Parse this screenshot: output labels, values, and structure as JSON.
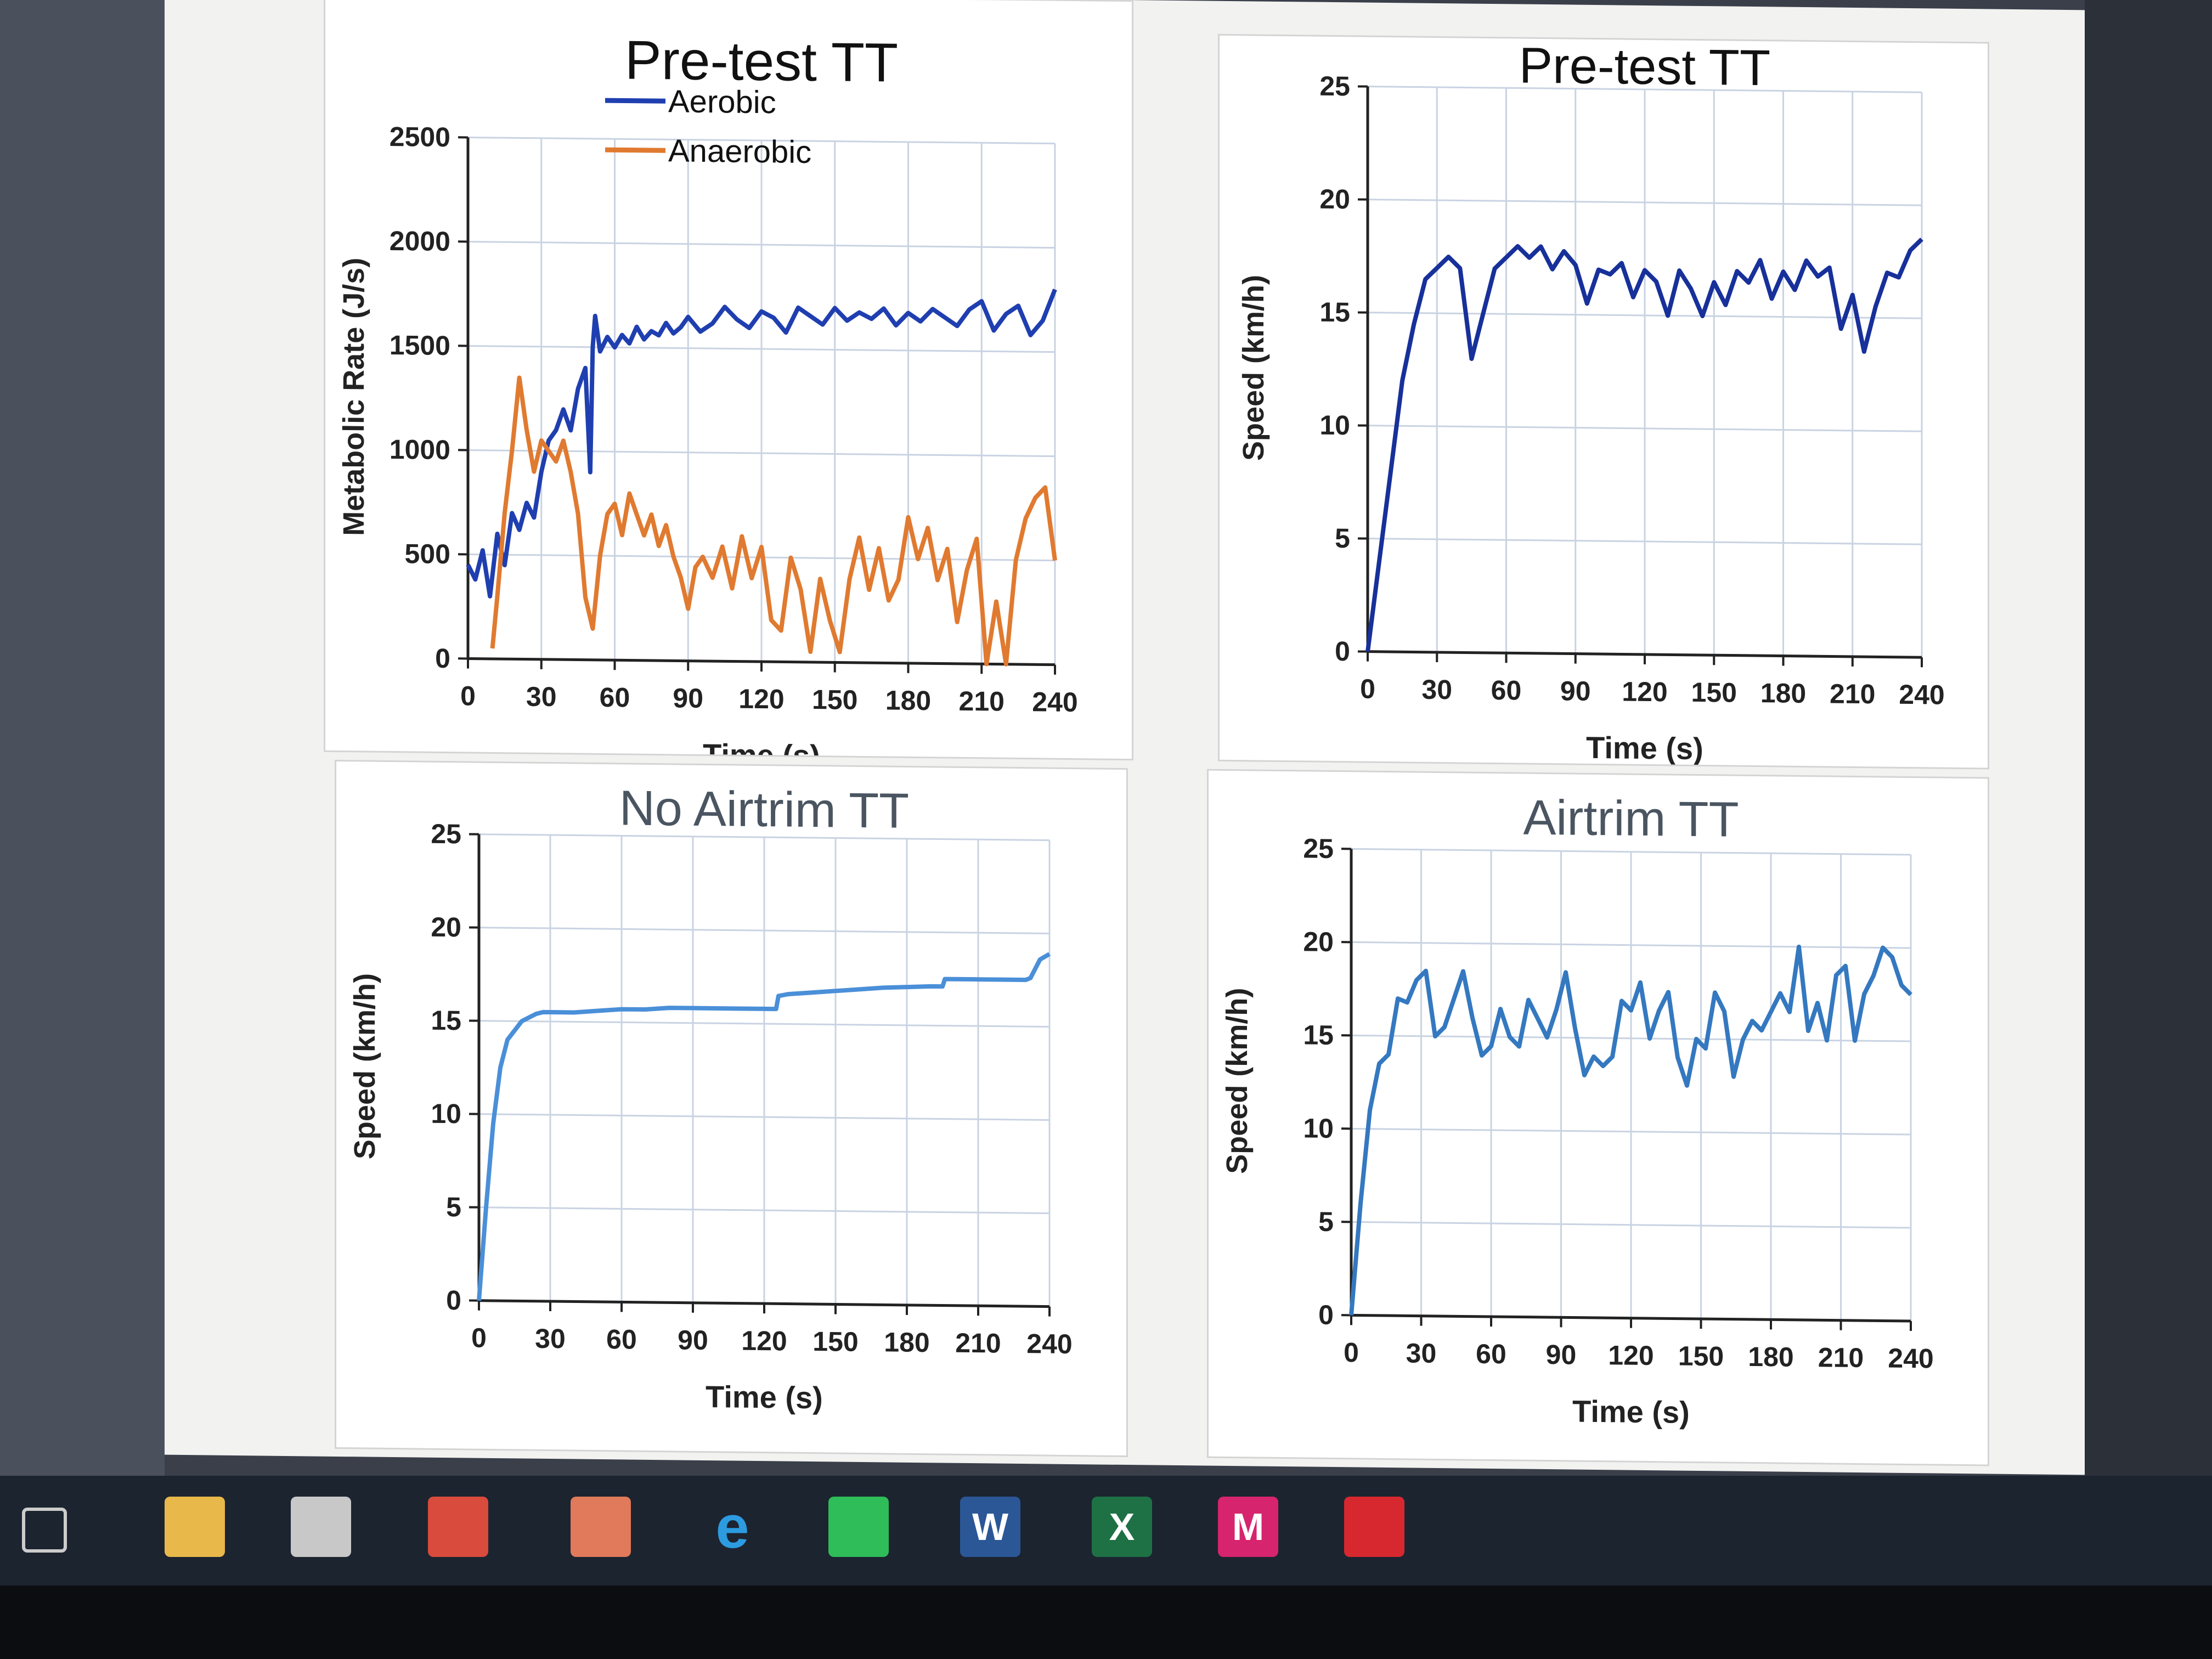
{
  "charts_page": {
    "panels": [
      {
        "id": "pretest-metabolic"
      },
      {
        "id": "pretest-speed"
      },
      {
        "id": "no-airtrim-speed"
      },
      {
        "id": "airtrim-speed"
      }
    ]
  },
  "chart_data": [
    {
      "type": "line",
      "title": "Pre-test TT",
      "xlabel": "Time (s)",
      "ylabel": "Metabolic Rate (J/s)",
      "xlim": [
        0,
        240
      ],
      "ylim": [
        0,
        2500
      ],
      "xticks": [
        "0",
        "30",
        "60",
        "90",
        "120",
        "150",
        "180",
        "210",
        "240"
      ],
      "yticks": [
        "0",
        "500",
        "1000",
        "1500",
        "2000",
        "2500"
      ],
      "grid": true,
      "legend_position": "top-left",
      "series": [
        {
          "name": "Aerobic",
          "color": "#1f3fb0",
          "x": [
            0,
            3,
            6,
            9,
            12,
            15,
            18,
            21,
            24,
            27,
            30,
            33,
            36,
            39,
            42,
            45,
            48,
            50,
            51,
            52,
            54,
            57,
            60,
            63,
            66,
            69,
            72,
            75,
            78,
            81,
            84,
            87,
            90,
            95,
            100,
            105,
            110,
            115,
            120,
            125,
            130,
            135,
            140,
            145,
            150,
            155,
            160,
            165,
            170,
            175,
            180,
            185,
            190,
            195,
            200,
            205,
            210,
            215,
            220,
            225,
            230,
            235,
            240
          ],
          "y": [
            450,
            380,
            520,
            300,
            600,
            450,
            700,
            620,
            750,
            680,
            900,
            1050,
            1100,
            1200,
            1100,
            1300,
            1400,
            900,
            1500,
            1650,
            1480,
            1550,
            1500,
            1560,
            1520,
            1600,
            1540,
            1580,
            1560,
            1620,
            1570,
            1600,
            1650,
            1580,
            1620,
            1700,
            1640,
            1600,
            1680,
            1650,
            1580,
            1700,
            1660,
            1620,
            1700,
            1640,
            1680,
            1650,
            1700,
            1620,
            1680,
            1640,
            1700,
            1660,
            1620,
            1700,
            1740,
            1600,
            1680,
            1720,
            1580,
            1650,
            1800
          ]
        },
        {
          "name": "Anaerobic",
          "color": "#e07a30",
          "x": [
            0,
            6,
            10,
            12,
            15,
            18,
            21,
            24,
            27,
            30,
            33,
            36,
            39,
            42,
            45,
            48,
            51,
            54,
            57,
            60,
            63,
            66,
            69,
            72,
            75,
            78,
            81,
            84,
            87,
            90,
            93,
            96,
            100,
            104,
            108,
            112,
            116,
            120,
            124,
            128,
            132,
            136,
            140,
            144,
            148,
            152,
            156,
            160,
            164,
            168,
            172,
            176,
            180,
            184,
            188,
            192,
            196,
            200,
            204,
            208,
            212,
            216,
            220,
            224,
            228,
            232,
            236,
            240
          ],
          "y": [
            null,
            null,
            50,
            300,
            700,
            1000,
            1350,
            1100,
            900,
            1050,
            1000,
            950,
            1050,
            900,
            700,
            300,
            150,
            500,
            700,
            750,
            600,
            800,
            700,
            600,
            700,
            550,
            650,
            500,
            400,
            250,
            450,
            500,
            400,
            550,
            350,
            600,
            400,
            550,
            200,
            150,
            500,
            350,
            50,
            400,
            200,
            50,
            400,
            600,
            350,
            550,
            300,
            400,
            700,
            500,
            650,
            400,
            550,
            200,
            450,
            600,
            0,
            300,
            0,
            500,
            700,
            800,
            850,
            500
          ]
        }
      ]
    },
    {
      "type": "line",
      "title": "Pre-test TT",
      "xlabel": "Time (s)",
      "ylabel": "Speed (km/h)",
      "xlim": [
        0,
        240
      ],
      "ylim": [
        0,
        25
      ],
      "xticks": [
        "0",
        "30",
        "60",
        "90",
        "120",
        "150",
        "180",
        "210",
        "240"
      ],
      "yticks": [
        "0",
        "5",
        "10",
        "15",
        "20",
        "25"
      ],
      "grid": true,
      "series": [
        {
          "color": "#17309a",
          "x": [
            0,
            5,
            10,
            15,
            20,
            25,
            30,
            35,
            40,
            45,
            50,
            55,
            60,
            65,
            70,
            75,
            80,
            85,
            90,
            95,
            100,
            105,
            110,
            115,
            120,
            125,
            130,
            135,
            140,
            145,
            150,
            155,
            160,
            165,
            170,
            175,
            180,
            185,
            190,
            195,
            200,
            205,
            210,
            215,
            220,
            225,
            230,
            235,
            240
          ],
          "y": [
            0,
            4,
            8,
            12,
            14.5,
            16.5,
            17,
            17.5,
            17,
            13,
            15,
            17,
            17.5,
            18,
            17.5,
            18,
            17,
            17.8,
            17.2,
            15.5,
            17,
            16.8,
            17.3,
            15.8,
            17,
            16.5,
            15,
            17,
            16.2,
            15,
            16.5,
            15.5,
            17,
            16.5,
            17.5,
            15.8,
            17,
            16.2,
            17.5,
            16.8,
            17.2,
            14.5,
            16,
            13.5,
            15.5,
            17,
            16.8,
            18,
            18.5
          ]
        }
      ]
    },
    {
      "type": "line",
      "title": "No Airtrim TT",
      "xlabel": "Time (s)",
      "ylabel": "Speed (km/h)",
      "xlim": [
        0,
        240
      ],
      "ylim": [
        0,
        25
      ],
      "xticks": [
        "0",
        "30",
        "60",
        "90",
        "120",
        "150",
        "180",
        "210",
        "240"
      ],
      "yticks": [
        "0",
        "5",
        "10",
        "15",
        "20",
        "25"
      ],
      "grid": true,
      "series": [
        {
          "color": "#4a8fd8",
          "x": [
            0,
            3,
            6,
            9,
            12,
            15,
            18,
            21,
            24,
            27,
            30,
            40,
            50,
            60,
            70,
            80,
            90,
            100,
            110,
            120,
            125,
            126,
            130,
            140,
            150,
            160,
            170,
            190,
            195,
            196,
            200,
            210,
            220,
            230,
            232,
            236,
            240
          ],
          "y": [
            0,
            5,
            9.5,
            12.5,
            14,
            14.5,
            15,
            15.2,
            15.4,
            15.5,
            15.5,
            15.5,
            15.6,
            15.7,
            15.7,
            15.8,
            15.8,
            15.8,
            15.8,
            15.8,
            15.8,
            16.5,
            16.6,
            16.7,
            16.8,
            16.9,
            17,
            17.1,
            17.1,
            17.5,
            17.5,
            17.5,
            17.5,
            17.5,
            17.6,
            18.6,
            18.9
          ]
        }
      ]
    },
    {
      "type": "line",
      "title": "Airtrim TT",
      "xlabel": "Time (s)",
      "ylabel": "Speed (km/h)",
      "xlim": [
        0,
        240
      ],
      "ylim": [
        0,
        25
      ],
      "xticks": [
        "0",
        "30",
        "60",
        "90",
        "120",
        "150",
        "180",
        "210",
        "240"
      ],
      "yticks": [
        "0",
        "5",
        "10",
        "15",
        "20",
        "25"
      ],
      "grid": true,
      "series": [
        {
          "color": "#3478c0",
          "x": [
            0,
            4,
            8,
            12,
            16,
            20,
            24,
            28,
            32,
            36,
            40,
            44,
            48,
            52,
            56,
            60,
            64,
            68,
            72,
            76,
            80,
            84,
            88,
            92,
            96,
            100,
            104,
            108,
            112,
            116,
            120,
            124,
            128,
            132,
            136,
            140,
            144,
            148,
            152,
            156,
            160,
            164,
            168,
            172,
            176,
            180,
            184,
            188,
            192,
            196,
            200,
            204,
            208,
            212,
            216,
            220,
            224,
            228,
            232,
            236,
            240
          ],
          "y": [
            0,
            6,
            11,
            13.5,
            14,
            17,
            16.8,
            18,
            18.5,
            15,
            15.5,
            17,
            18.5,
            16,
            14,
            14.5,
            16.5,
            15,
            14.5,
            17,
            16,
            15,
            16.5,
            18.5,
            15.5,
            13,
            14,
            13.5,
            14,
            17,
            16.5,
            18,
            15,
            16.5,
            17.5,
            14,
            12.5,
            15,
            14.5,
            17.5,
            16.5,
            13,
            15,
            16,
            15.5,
            16.5,
            17.5,
            16.5,
            20,
            15.5,
            17,
            15,
            18.5,
            19,
            15,
            17.5,
            18.5,
            20,
            19.5,
            18,
            17.5
          ]
        }
      ]
    }
  ],
  "taskbar": {
    "items": [
      {
        "name": "task-view",
        "glyph": "",
        "color": "#1c2430"
      },
      {
        "name": "file-explorer",
        "glyph": "",
        "color": "#e8b84a"
      },
      {
        "name": "store",
        "glyph": "",
        "color": "#c8c8c8"
      },
      {
        "name": "reader",
        "glyph": "",
        "color": "#d94b3c"
      },
      {
        "name": "contacts",
        "glyph": "",
        "color": "#e07a5a"
      },
      {
        "name": "edge",
        "glyph": "e",
        "color": "#1c2430"
      },
      {
        "name": "spotify",
        "glyph": "",
        "color": "#2ebd59"
      },
      {
        "name": "word",
        "glyph": "W",
        "color": "#2b5797"
      },
      {
        "name": "excel",
        "glyph": "X",
        "color": "#1e7145"
      },
      {
        "name": "mendeley",
        "glyph": "M",
        "color": "#d6246e"
      },
      {
        "name": "acrobat",
        "glyph": "",
        "color": "#d7282f"
      }
    ]
  }
}
